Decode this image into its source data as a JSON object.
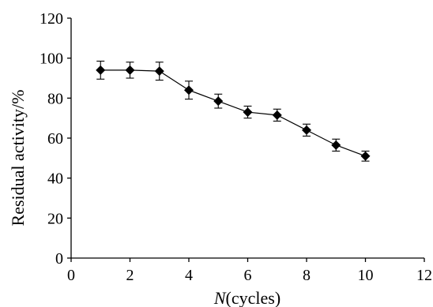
{
  "chart_data": {
    "type": "line",
    "title": "",
    "xlabel_italic": "N",
    "xlabel_rest": "(cycles)",
    "ylabel": "Residual activity/%",
    "xlim": [
      0,
      12
    ],
    "ylim": [
      0,
      120
    ],
    "xticks": [
      0,
      2,
      4,
      6,
      8,
      10,
      12
    ],
    "yticks": [
      0,
      20,
      40,
      60,
      80,
      100,
      120
    ],
    "grid": false,
    "series": [
      {
        "x": [
          1,
          2,
          3,
          4,
          5,
          6,
          7,
          8,
          9,
          10
        ],
        "y": [
          94,
          94,
          93.5,
          84,
          78.5,
          73,
          71.5,
          64,
          56.5,
          51
        ],
        "error": [
          4.5,
          4,
          4.5,
          4.5,
          3.5,
          3,
          3,
          3,
          3,
          2.5
        ],
        "marker": "diamond",
        "color": "#000000"
      }
    ]
  }
}
